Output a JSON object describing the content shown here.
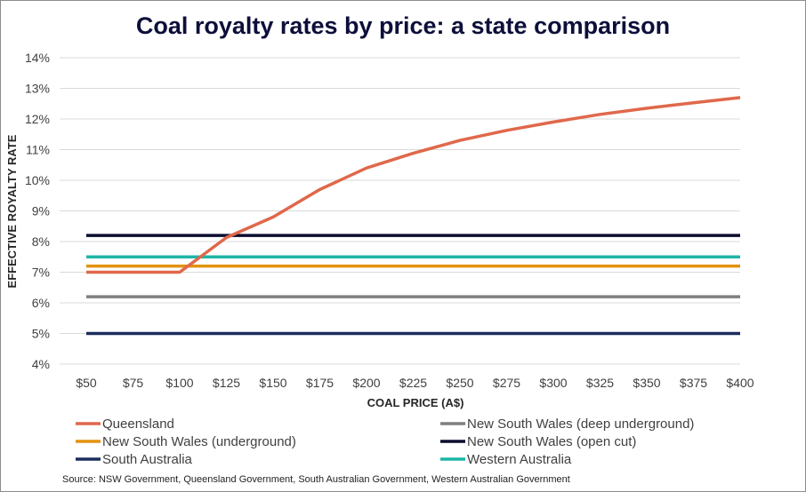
{
  "title": "Coal royalty rates by price: a state comparison",
  "source": "Source: NSW Government, Queensland Government, South Australian Government, Western Australian Government",
  "chart_data": {
    "type": "line",
    "title": "Coal royalty rates by price: a state comparison",
    "xlabel": "COAL PRICE (A$)",
    "ylabel": "EFFECTIVE ROYALTY RATE",
    "x": [
      50,
      75,
      100,
      125,
      150,
      175,
      200,
      225,
      250,
      275,
      300,
      325,
      350,
      375,
      400
    ],
    "x_tick_labels": [
      "$50",
      "$75",
      "$100",
      "$125",
      "$150",
      "$175",
      "$200",
      "$225",
      "$250",
      "$275",
      "$300",
      "$325",
      "$350",
      "$375",
      "$400"
    ],
    "y_tick_labels": [
      "4%",
      "5%",
      "6%",
      "7%",
      "8%",
      "9%",
      "10%",
      "11%",
      "12%",
      "13%",
      "14%"
    ],
    "ylim": [
      4,
      14
    ],
    "y_unit": "%",
    "grid": true,
    "legend_position": "bottom",
    "series": [
      {
        "name": "Queensland",
        "color": "#e0684b",
        "values": [
          7.0,
          7.0,
          7.0,
          8.13,
          8.8,
          9.7,
          10.4,
          10.88,
          11.3,
          11.63,
          11.9,
          12.15,
          12.35,
          12.53,
          12.7
        ]
      },
      {
        "name": "New South Wales (deep underground)",
        "color": "#7f7f7f",
        "values": [
          6.2,
          6.2,
          6.2,
          6.2,
          6.2,
          6.2,
          6.2,
          6.2,
          6.2,
          6.2,
          6.2,
          6.2,
          6.2,
          6.2,
          6.2
        ]
      },
      {
        "name": "New South Wales (underground)",
        "color": "#e3920f",
        "values": [
          7.2,
          7.2,
          7.2,
          7.2,
          7.2,
          7.2,
          7.2,
          7.2,
          7.2,
          7.2,
          7.2,
          7.2,
          7.2,
          7.2,
          7.2
        ]
      },
      {
        "name": "New South Wales (open cut)",
        "color": "#0b0d2e",
        "values": [
          8.2,
          8.2,
          8.2,
          8.2,
          8.2,
          8.2,
          8.2,
          8.2,
          8.2,
          8.2,
          8.2,
          8.2,
          8.2,
          8.2,
          8.2
        ]
      },
      {
        "name": "South Australia",
        "color": "#1c2d5c",
        "values": [
          5.0,
          5.0,
          5.0,
          5.0,
          5.0,
          5.0,
          5.0,
          5.0,
          5.0,
          5.0,
          5.0,
          5.0,
          5.0,
          5.0,
          5.0
        ]
      },
      {
        "name": "Western Australia",
        "color": "#1fb5a6",
        "values": [
          7.5,
          7.5,
          7.5,
          7.5,
          7.5,
          7.5,
          7.5,
          7.5,
          7.5,
          7.5,
          7.5,
          7.5,
          7.5,
          7.5,
          7.5
        ]
      }
    ]
  }
}
